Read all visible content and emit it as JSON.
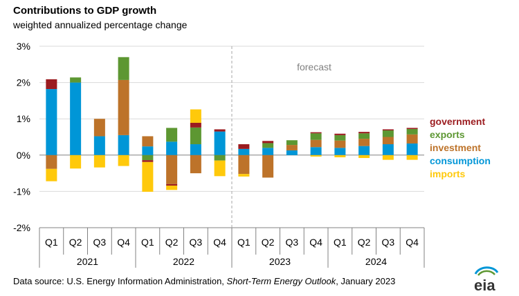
{
  "header": {
    "title": "Contributions to GDP growth",
    "subtitle": "weighted annualized percentage change"
  },
  "footer": {
    "source_prefix": "Data source: U.S. Energy Information Administration, ",
    "source_italic": "Short-Term Energy Outlook",
    "source_suffix": ", January 2023",
    "logo_text": "eia"
  },
  "chart_data": {
    "type": "bar",
    "stacked": true,
    "categories": [
      "Q1",
      "Q2",
      "Q3",
      "Q4",
      "Q1",
      "Q2",
      "Q3",
      "Q4",
      "Q1",
      "Q2",
      "Q3",
      "Q4",
      "Q1",
      "Q2",
      "Q3",
      "Q4"
    ],
    "years": [
      {
        "label": "2021",
        "start": 0,
        "end": 3
      },
      {
        "label": "2022",
        "start": 4,
        "end": 7
      },
      {
        "label": "2023",
        "start": 8,
        "end": 11
      },
      {
        "label": "2024",
        "start": 12,
        "end": 15
      }
    ],
    "ylim": [
      -2,
      3
    ],
    "yticks": [
      -2,
      -1,
      0,
      1,
      2,
      3
    ],
    "ytick_labels": [
      "-2%",
      "-1%",
      "0%",
      "1%",
      "2%",
      "3%"
    ],
    "forecast_label": "forecast",
    "forecast_start_index": 8,
    "series": [
      {
        "name": "consumption",
        "color": "#0096D7",
        "values": [
          1.82,
          2.0,
          0.52,
          0.55,
          0.24,
          0.37,
          0.3,
          0.65,
          0.17,
          0.2,
          0.13,
          0.22,
          0.2,
          0.25,
          0.3,
          0.32
        ]
      },
      {
        "name": "investment",
        "color": "#BD732A",
        "values": [
          -0.38,
          0.0,
          0.48,
          1.52,
          0.28,
          -0.8,
          -0.5,
          0.0,
          -0.52,
          -0.62,
          0.15,
          0.2,
          0.2,
          0.2,
          0.2,
          0.25
        ]
      },
      {
        "name": "exports",
        "color": "#5D9732",
        "values": [
          0.0,
          0.14,
          0.0,
          0.63,
          -0.14,
          0.38,
          0.46,
          -0.15,
          0.0,
          0.13,
          0.13,
          0.18,
          0.15,
          0.15,
          0.18,
          0.15
        ]
      },
      {
        "name": "government",
        "color": "#9B1B1F",
        "values": [
          0.27,
          0.0,
          0.0,
          0.0,
          -0.05,
          -0.04,
          0.13,
          0.06,
          0.13,
          0.06,
          0.0,
          0.03,
          0.04,
          0.04,
          0.03,
          0.03
        ]
      },
      {
        "name": "imports",
        "color": "#FFC90B",
        "values": [
          -0.34,
          -0.37,
          -0.34,
          -0.3,
          -0.82,
          -0.12,
          0.37,
          -0.43,
          -0.07,
          0.0,
          0.0,
          -0.04,
          -0.06,
          -0.08,
          -0.13,
          -0.13
        ]
      }
    ],
    "legend": [
      {
        "name": "government",
        "color": "#9B1B1F"
      },
      {
        "name": "exports",
        "color": "#5D9732"
      },
      {
        "name": "investment",
        "color": "#BD732A"
      },
      {
        "name": "consumption",
        "color": "#0096D7"
      },
      {
        "name": "imports",
        "color": "#FFC90B"
      }
    ],
    "legend_position": "right"
  }
}
